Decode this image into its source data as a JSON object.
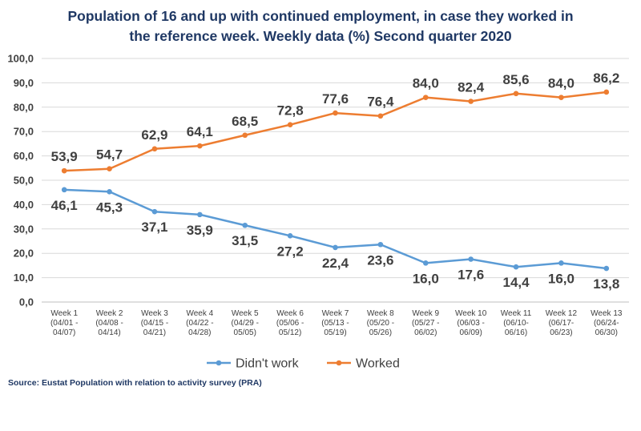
{
  "chart_data": {
    "type": "line",
    "title_lines": [
      "Population of 16 and up with continued employment, in case they worked in",
      "the reference week. Weekly data (%) Second quarter 2020"
    ],
    "categories": [
      [
        "Week 1",
        "(04/01 -",
        "04/07)"
      ],
      [
        "Week 2",
        "(04/08 -",
        "04/14)"
      ],
      [
        "Week 3",
        "(04/15 -",
        "04/21)"
      ],
      [
        "Week 4",
        "(04/22 -",
        "04/28)"
      ],
      [
        "Week 5",
        "(04/29 -",
        "05/05)"
      ],
      [
        "Week 6",
        "(05/06 -",
        "05/12)"
      ],
      [
        "Week 7",
        "(05/13 -",
        "05/19)"
      ],
      [
        "Week 8",
        "(05/20 -",
        "05/26)"
      ],
      [
        "Week 9",
        "(05/27 -",
        "06/02)"
      ],
      [
        "Week 10",
        "(06/03 -",
        "06/09)"
      ],
      [
        "Week 11",
        "(06/10-",
        "06/16)"
      ],
      [
        "Week 12",
        "(06/17-",
        "06/23)"
      ],
      [
        "Week 13",
        "(06/24-",
        "06/30)"
      ]
    ],
    "series": [
      {
        "name": "Didn't work",
        "color": "#5b9bd5",
        "values": [
          46.1,
          45.3,
          37.1,
          35.9,
          31.5,
          27.2,
          22.4,
          23.6,
          16.0,
          17.6,
          14.4,
          16.0,
          13.8
        ],
        "labels": [
          "46,1",
          "45,3",
          "37,1",
          "35,9",
          "31,5",
          "27,2",
          "22,4",
          "23,6",
          "16,0",
          "17,6",
          "14,4",
          "16,0",
          "13,8"
        ],
        "label_position": "below"
      },
      {
        "name": "Worked",
        "color": "#ed7d31",
        "values": [
          53.9,
          54.7,
          62.9,
          64.1,
          68.5,
          72.8,
          77.6,
          76.4,
          84.0,
          82.4,
          85.6,
          84.0,
          86.2
        ],
        "labels": [
          "53,9",
          "54,7",
          "62,9",
          "64,1",
          "68,5",
          "72,8",
          "77,6",
          "76,4",
          "84,0",
          "82,4",
          "85,6",
          "84,0",
          "86,2"
        ],
        "label_position": "above"
      }
    ],
    "ylim": [
      0,
      100
    ],
    "yticks": [
      0,
      10,
      20,
      30,
      40,
      50,
      60,
      70,
      80,
      90,
      100
    ],
    "ytick_labels": [
      "0,0",
      "10,0",
      "20,0",
      "30,0",
      "40,0",
      "50,0",
      "60,0",
      "70,0",
      "80,0",
      "90,0",
      "100,0"
    ],
    "grid": true,
    "legend": "bottom",
    "xlabel": "",
    "ylabel": "",
    "source": "Source: Eustat Population with relation to activity survey (PRA)"
  }
}
